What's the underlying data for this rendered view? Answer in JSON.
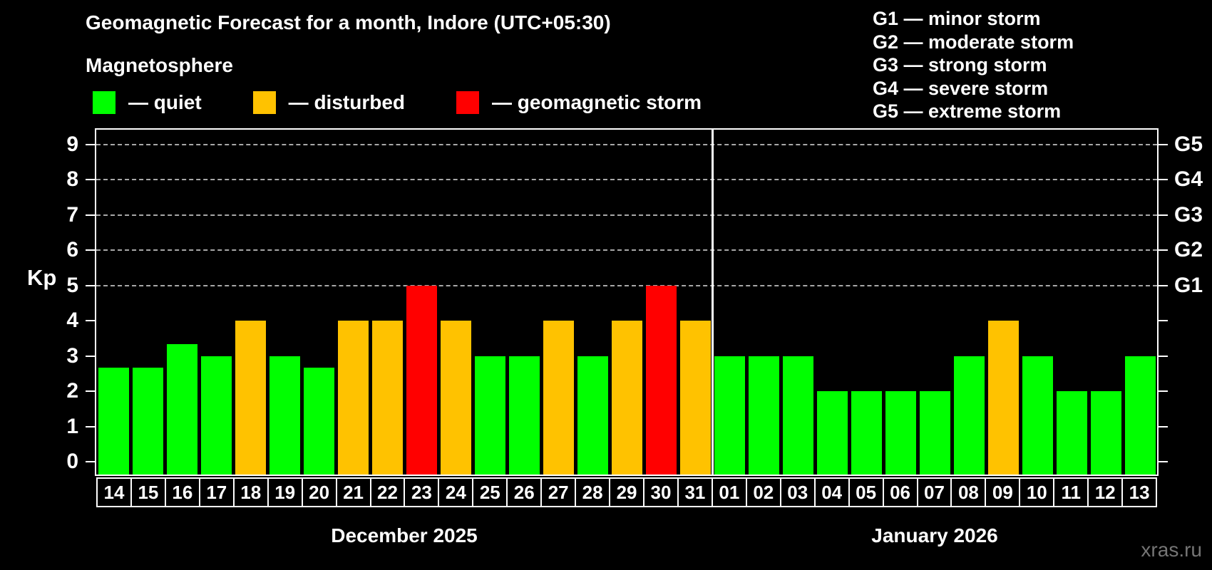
{
  "header": {
    "title": "Geomagnetic Forecast for a month, Indore (UTC+05:30)",
    "subtitle": "Magnetosphere",
    "legend": {
      "items": [
        {
          "key": "quiet",
          "label": "— quiet"
        },
        {
          "key": "disturbed",
          "label": "— disturbed"
        },
        {
          "key": "storm",
          "label": "— geomagnetic storm"
        }
      ]
    },
    "g_scale_legend": [
      "G1 — minor storm",
      "G2 — moderate storm",
      "G3 — strong storm",
      "G4 — severe storm",
      "G5 — extreme storm"
    ]
  },
  "chart_data": {
    "type": "bar",
    "title": "Geomagnetic Forecast for a month, Indore (UTC+05:30)",
    "ylabel": "Kp",
    "ylim": [
      0,
      9
    ],
    "yticks": [
      0,
      1,
      2,
      3,
      4,
      5,
      6,
      7,
      8,
      9
    ],
    "grid": "dashed horizontal lines at storm levels",
    "gridline_values": [
      5,
      6,
      7,
      8,
      9
    ],
    "right_axis": [
      {
        "value": 5,
        "label": "G1"
      },
      {
        "value": 6,
        "label": "G2"
      },
      {
        "value": 7,
        "label": "G3"
      },
      {
        "value": 8,
        "label": "G4"
      },
      {
        "value": 9,
        "label": "G5"
      }
    ],
    "colors": {
      "quiet": "#00ff00",
      "disturbed": "#ffc200",
      "storm": "#ff0000"
    },
    "series": [
      {
        "month": "December 2025",
        "days": [
          "14",
          "15",
          "16",
          "17",
          "18",
          "19",
          "20",
          "21",
          "22",
          "23",
          "24",
          "25",
          "26",
          "27",
          "28",
          "29",
          "30",
          "31"
        ],
        "values": [
          2.67,
          2.67,
          3.33,
          3,
          4,
          3,
          2.67,
          4,
          4,
          5,
          4,
          3,
          3,
          4,
          3,
          4,
          5,
          4
        ],
        "status": [
          "quiet",
          "quiet",
          "quiet",
          "quiet",
          "disturbed",
          "quiet",
          "quiet",
          "disturbed",
          "disturbed",
          "storm",
          "disturbed",
          "quiet",
          "quiet",
          "disturbed",
          "quiet",
          "disturbed",
          "storm",
          "disturbed"
        ]
      },
      {
        "month": "January 2026",
        "days": [
          "01",
          "02",
          "03",
          "04",
          "05",
          "06",
          "07",
          "08",
          "09",
          "10",
          "11",
          "12",
          "13"
        ],
        "values": [
          3,
          3,
          3,
          2,
          2,
          2,
          2,
          3,
          4,
          3,
          2,
          2,
          3
        ],
        "status": [
          "quiet",
          "quiet",
          "quiet",
          "quiet",
          "quiet",
          "quiet",
          "quiet",
          "quiet",
          "disturbed",
          "quiet",
          "quiet",
          "quiet",
          "quiet"
        ]
      }
    ]
  },
  "footer": {
    "watermark": "xras.ru"
  }
}
